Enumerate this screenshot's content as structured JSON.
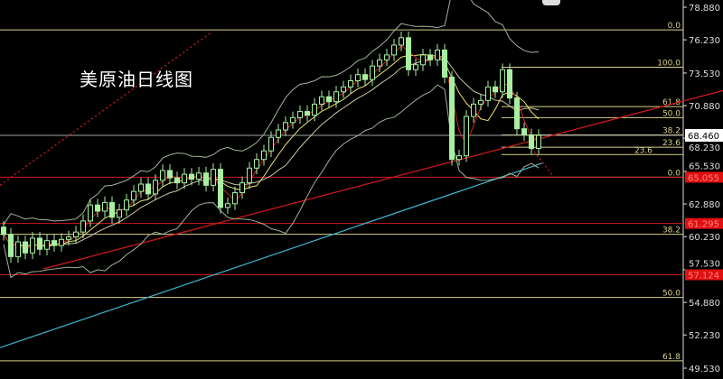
{
  "chart_data": {
    "type": "candlestick",
    "title": "美原油日线图",
    "ylim": [
      49.53,
      78.88
    ],
    "y_ticks": [
      "78.880",
      "76.230",
      "73.530",
      "70.880",
      "68.230",
      "65.530",
      "62.880",
      "60.230",
      "57.530",
      "54.880",
      "52.230",
      "49.530"
    ],
    "grid": false,
    "colors": {
      "background": "#000000",
      "candle": "#a8f0a0",
      "fib": "#d6d28a",
      "support": "#d11a1a",
      "long_ma": "#3fb6d0",
      "current": "#a0a0a0"
    },
    "closes": [
      60.4,
      58.6,
      59.8,
      58.9,
      60.1,
      59.2,
      59.9,
      59.5,
      60.0,
      60.2,
      60.6,
      61.5,
      62.8,
      62.3,
      63.0,
      61.8,
      62.4,
      63.2,
      63.9,
      64.5,
      63.7,
      64.8,
      65.6,
      65.0,
      64.6,
      65.3,
      64.9,
      65.4,
      64.4,
      65.7,
      62.6,
      62.9,
      63.8,
      64.6,
      65.8,
      66.5,
      67.2,
      68.3,
      68.9,
      69.5,
      69.9,
      70.4,
      70.1,
      71.0,
      71.6,
      71.2,
      72.0,
      72.4,
      72.9,
      73.4,
      73.0,
      74.1,
      74.6,
      75.0,
      75.8,
      76.4,
      73.8,
      74.2,
      75.0,
      74.6,
      75.4,
      73.2,
      66.5,
      66.8,
      70.0,
      71.0,
      71.3,
      72.4,
      72.0,
      73.8,
      71.5,
      69.0,
      68.5,
      67.4,
      68.46
    ],
    "long_ma": {
      "start": 51.2,
      "end": 66.2
    },
    "current_price": {
      "label": "68.460",
      "value": 68.46
    },
    "support_levels": [
      {
        "label": "65.055",
        "value": 65.055
      },
      {
        "label": "61.295",
        "value": 61.295
      },
      {
        "label": "57.124",
        "value": 57.124
      }
    ],
    "fib_full": [
      {
        "label": "0.0",
        "value": 77.04
      },
      {
        "label": "38.2",
        "value": 60.42
      },
      {
        "label": "50.0",
        "value": 55.28
      },
      {
        "label": "61.8",
        "value": 50.13
      }
    ],
    "fib_recent": [
      {
        "label": "100.0",
        "value": 74.0
      },
      {
        "label": "61.8",
        "value": 70.8
      },
      {
        "label": "50.0",
        "value": 69.9
      },
      {
        "label": "38.2",
        "value": 68.5
      },
      {
        "label": "23.6",
        "value": 67.5
      },
      {
        "label": "23.6",
        "value": 66.9
      },
      {
        "label": "0.0",
        "value": 65.06
      }
    ],
    "trendlines": [
      {
        "style": "solid",
        "from": 57.6,
        "to": 72.1
      },
      {
        "style": "dotted",
        "from": 64.4,
        "to": 76.9
      }
    ]
  }
}
